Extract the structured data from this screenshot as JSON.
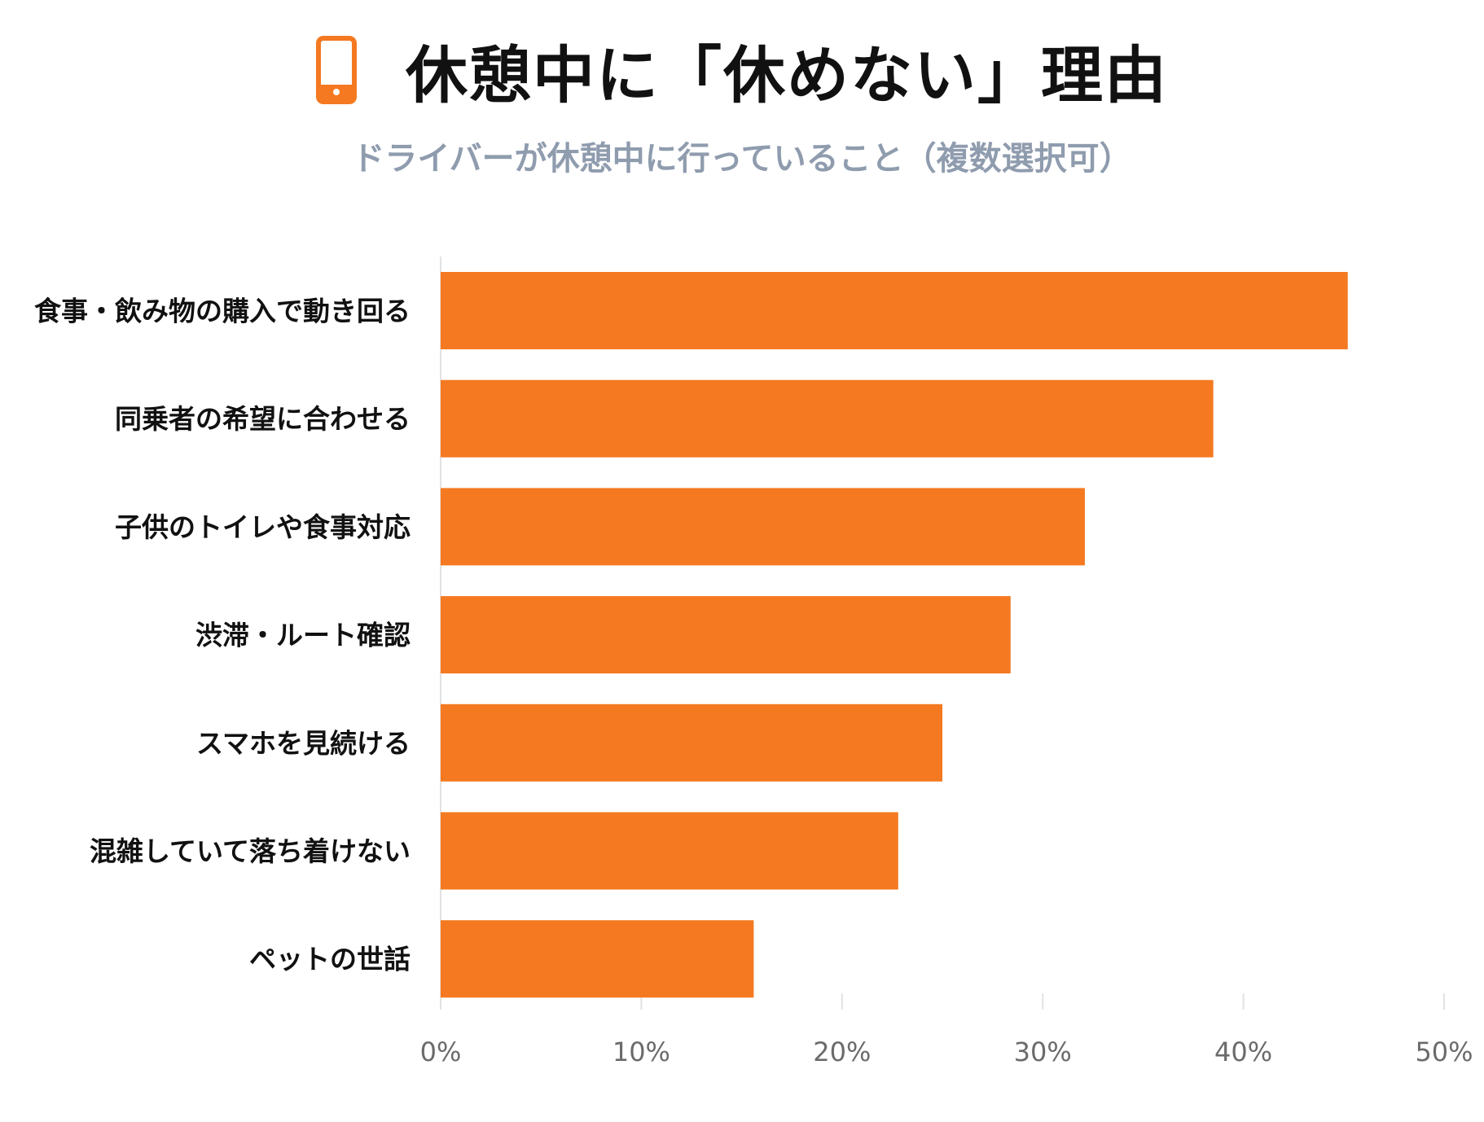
{
  "header": {
    "title": "休憩中に「休めない」理由",
    "subtitle": "ドライバーが休憩中に行っていること（複数選択可）",
    "icon": "smartphone-icon",
    "accent_color": "#f47920"
  },
  "chart_data": {
    "type": "bar",
    "orientation": "horizontal",
    "categories": [
      "食事・飲み物の購入で動き回る",
      "同乗者の希望に合わせる",
      "子供のトイレや食事対応",
      "渋滞・ルート確認",
      "スマホを見続ける",
      "混雑していて落ち着けない",
      "ペットの世話"
    ],
    "values": [
      45.2,
      38.5,
      32.1,
      28.4,
      25.0,
      22.8,
      15.6
    ],
    "unit": "%",
    "xlim": [
      0,
      50
    ],
    "xticks": [
      "0%",
      "10%",
      "20%",
      "30%",
      "40%",
      "50%"
    ],
    "bar_color": "#f47920",
    "grid": false
  }
}
